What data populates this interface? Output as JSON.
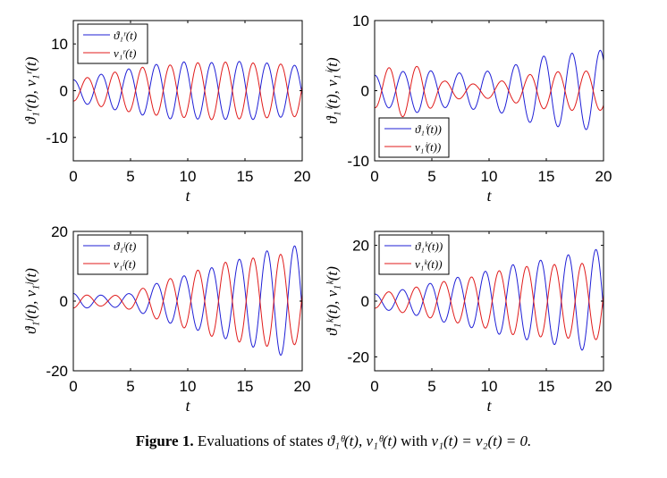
{
  "figure": {
    "colors": {
      "series1": "#1f1fd6",
      "series2": "#e01b1b",
      "axis": "#000000"
    }
  },
  "caption": {
    "label": "Figure 1.",
    "text_before": "Evaluations of states ",
    "math_states": "ϑ₁ᶿ(t), ν₁ᶿ(t)",
    "text_with": " with ",
    "math_condition": "v₁(t) = v₂(t) = 0."
  },
  "chart_data": [
    {
      "type": "line",
      "panel": "top-left",
      "xlabel": "t",
      "ylabel": "ϑ₁ʳ(t), ν₁ʳ(t)",
      "xlim": [
        0,
        20
      ],
      "ylim": [
        -15,
        15
      ],
      "xticks": [
        0,
        5,
        10,
        15,
        20
      ],
      "xtick_labels": [
        "0",
        "5",
        "10",
        "15",
        "20"
      ],
      "yticks": [
        10,
        0,
        -10
      ],
      "ytick_labels": [
        "10",
        "0",
        "-10"
      ],
      "legend_position": "top-left",
      "series": [
        {
          "name": "ϑ₁ʳ(t)",
          "color": "#1f1fd6",
          "omega": 2.6,
          "phase": 1.5708,
          "amp_pts": [
            [
              0,
              2.3
            ],
            [
              3,
              3.8
            ],
            [
              6,
              5.2
            ],
            [
              9,
              6.2
            ],
            [
              12,
              6.0
            ],
            [
              15,
              6.3
            ],
            [
              20,
              5.3
            ]
          ]
        },
        {
          "name": "ν₁ʳ(t)",
          "color": "#e01b1b",
          "omega": 2.6,
          "phase": -1.5708,
          "amp_pts": [
            [
              0,
              2.2
            ],
            [
              3,
              3.7
            ],
            [
              6,
              5.0
            ],
            [
              9,
              5.6
            ],
            [
              12,
              6.2
            ],
            [
              15,
              6.0
            ],
            [
              20,
              5.5
            ]
          ]
        }
      ]
    },
    {
      "type": "line",
      "panel": "top-right",
      "xlabel": "t",
      "ylabel": "ϑ₁ⁱ(t), ν₁ⁱ(t)",
      "xlim": [
        0,
        20
      ],
      "ylim": [
        -10,
        10
      ],
      "xticks": [
        0,
        5,
        10,
        15,
        20
      ],
      "xtick_labels": [
        "0",
        "5",
        "10",
        "15",
        "20"
      ],
      "yticks": [
        10,
        0,
        -10
      ],
      "ytick_labels": [
        "10",
        "0",
        "-10"
      ],
      "legend_position": "bottom-left",
      "series": [
        {
          "name": "ϑ₁ⁱ(t))",
          "color": "#1f1fd6",
          "omega": 2.55,
          "phase": 1.5708,
          "amp_pts": [
            [
              0,
              2.2
            ],
            [
              2,
              2.6
            ],
            [
              4,
              3.2
            ],
            [
              6,
              2.4
            ],
            [
              8,
              2.6
            ],
            [
              10,
              2.8
            ],
            [
              12,
              3.5
            ],
            [
              14,
              4.8
            ],
            [
              17,
              5.3
            ],
            [
              20,
              5.8
            ]
          ]
        },
        {
          "name": "ν₁ⁱ(t))",
          "color": "#e01b1b",
          "omega": 2.55,
          "phase": -1.5708,
          "amp_pts": [
            [
              0,
              2.4
            ],
            [
              2,
              3.8
            ],
            [
              4,
              3.4
            ],
            [
              6,
              1.4
            ],
            [
              9,
              0.9
            ],
            [
              12,
              1.6
            ],
            [
              14,
              2.5
            ],
            [
              17,
              2.8
            ],
            [
              20,
              2.8
            ]
          ]
        }
      ]
    },
    {
      "type": "line",
      "panel": "bottom-left",
      "xlabel": "t",
      "ylabel": "ϑ₁ʲ(t), ν₁ʲ(t)",
      "xlim": [
        0,
        20
      ],
      "ylim": [
        -20,
        20
      ],
      "xticks": [
        0,
        5,
        10,
        15,
        20
      ],
      "xtick_labels": [
        "0",
        "5",
        "10",
        "15",
        "20"
      ],
      "yticks": [
        20,
        0,
        -20
      ],
      "ytick_labels": [
        "20",
        "0",
        "-20"
      ],
      "legend_position": "top-left",
      "series": [
        {
          "name": "ϑ₁ʲ(t)",
          "color": "#1f1fd6",
          "omega": 2.6,
          "phase": 1.5708,
          "amp_pts": [
            [
              0,
              2.2
            ],
            [
              3,
              1.6
            ],
            [
              5,
              2.2
            ],
            [
              8,
              6.0
            ],
            [
              10,
              7.5
            ],
            [
              13,
              10.5
            ],
            [
              16,
              13.5
            ],
            [
              18,
              15.5
            ],
            [
              20,
              16.0
            ]
          ]
        },
        {
          "name": "ν₁ʲ(t)",
          "color": "#e01b1b",
          "omega": 2.6,
          "phase": -1.5708,
          "amp_pts": [
            [
              0,
              2.0
            ],
            [
              3,
              1.3
            ],
            [
              5,
              2.4
            ],
            [
              8,
              6.0
            ],
            [
              10,
              8.0
            ],
            [
              13,
              11.0
            ],
            [
              16,
              12.5
            ],
            [
              18,
              13.5
            ],
            [
              20,
              12.0
            ]
          ]
        }
      ]
    },
    {
      "type": "line",
      "panel": "bottom-right",
      "xlabel": "t",
      "ylabel": "ϑ₁ᵏ(t), ν₁ᵏ(t)",
      "xlim": [
        0,
        20
      ],
      "ylim": [
        -25,
        25
      ],
      "xticks": [
        0,
        5,
        10,
        15,
        20
      ],
      "xtick_labels": [
        "0",
        "5",
        "10",
        "15",
        "20"
      ],
      "yticks": [
        20,
        0,
        -20
      ],
      "ytick_labels": [
        "20",
        "0",
        "-20"
      ],
      "legend_position": "top-left",
      "series": [
        {
          "name": "ϑ₁ᵏ(t))",
          "color": "#1f1fd6",
          "omega": 2.6,
          "phase": 1.5708,
          "amp_pts": [
            [
              0,
              2.5
            ],
            [
              3,
              4.5
            ],
            [
              6,
              7.5
            ],
            [
              9,
              10.0
            ],
            [
              12,
              13.0
            ],
            [
              15,
              15.0
            ],
            [
              18,
              17.5
            ],
            [
              20,
              19.0
            ]
          ]
        },
        {
          "name": "ν₁ᵏ(t))",
          "color": "#e01b1b",
          "omega": 2.6,
          "phase": -1.5708,
          "amp_pts": [
            [
              0,
              2.5
            ],
            [
              3,
              4.5
            ],
            [
              6,
              7.0
            ],
            [
              9,
              9.0
            ],
            [
              12,
              12.0
            ],
            [
              15,
              13.0
            ],
            [
              18,
              13.5
            ],
            [
              20,
              14.0
            ]
          ]
        }
      ]
    }
  ]
}
